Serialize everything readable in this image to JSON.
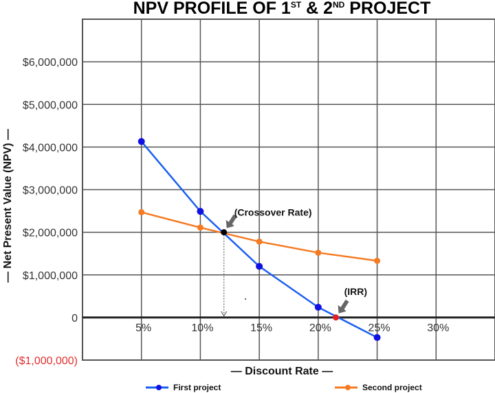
{
  "chart_data": {
    "type": "line",
    "title": "NPV PROFILE OF 1ST & 2ND PROJECT",
    "title_parts": {
      "a": "NPV PROFILE OF 1",
      "sup1": "ST",
      "b": " & 2",
      "sup2": "ND",
      "c": " PROJECT"
    },
    "xlabel": "— Discount Rate —",
    "ylabel": "— Net Present Value (NPV) —",
    "x": [
      5,
      10,
      15,
      20,
      25
    ],
    "x_unit": "%",
    "x_ticks": [
      "5%",
      "10%",
      "15%",
      "20%",
      "25%",
      "30%"
    ],
    "x_tick_values": [
      5,
      10,
      15,
      20,
      25,
      30
    ],
    "xlim": [
      0,
      35
    ],
    "ylim": [
      -1000000,
      7000000
    ],
    "y_ticks": [
      "($1,000,000)",
      "0",
      "$1,000,000",
      "$2,000,000",
      "$3,000,000",
      "$4,000,000",
      "$5,000,000",
      "$6,000,000"
    ],
    "y_tick_values": [
      -1000000,
      0,
      1000000,
      2000000,
      3000000,
      4000000,
      5000000,
      6000000
    ],
    "grid": true,
    "legend_position": "bottom",
    "series": [
      {
        "name": "First project",
        "color": "#1a5ef0",
        "marker_color": "#1010e0",
        "values": [
          4130000,
          2490000,
          1200000,
          240000,
          -470000
        ]
      },
      {
        "name": "Second project",
        "color": "#f57a22",
        "marker_color": "#f57a22",
        "values": [
          2470000,
          2110000,
          1780000,
          1520000,
          1330000
        ]
      }
    ],
    "annotations": [
      {
        "label": "(Crossover Rate)",
        "x": 12,
        "y": 2000000,
        "color": "#000000"
      },
      {
        "label": "(IRR)",
        "x": 21.5,
        "y": 0,
        "color": "#e02020"
      }
    ],
    "negative_tick_color": "#e03030"
  }
}
